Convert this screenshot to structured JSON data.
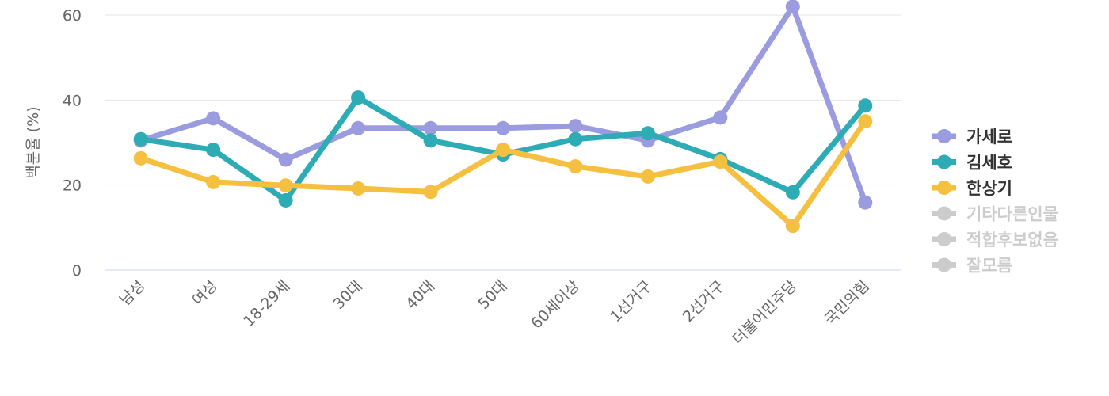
{
  "chart_data": {
    "type": "line",
    "y_label": "백분율 (%)",
    "categories": [
      "남성",
      "여성",
      "18-29세",
      "30대",
      "40대",
      "50대",
      "60세이상",
      "1선거구",
      "2선거구",
      "더불어민주당",
      "국민의힘"
    ],
    "ylim": [
      0,
      60
    ],
    "yticks": [
      0,
      20,
      40,
      60
    ],
    "grid": true,
    "series": [
      {
        "name": "가세로",
        "color": "#9b9be0",
        "visible": true,
        "values": [
          30.5,
          35.7,
          26,
          33.4,
          33.4,
          33.4,
          33.9,
          30.5,
          35.9,
          62,
          15.9
        ]
      },
      {
        "name": "김세호",
        "color": "#2eacb6",
        "visible": true,
        "values": [
          30.8,
          28.3,
          16.4,
          40.6,
          30.5,
          27.2,
          30.8,
          32.2,
          26.1,
          18.3,
          38.7
        ]
      },
      {
        "name": "한상기",
        "color": "#f5c040",
        "visible": true,
        "values": [
          26.3,
          20.7,
          19.9,
          19.2,
          18.4,
          28.3,
          24.4,
          22,
          25.5,
          10.4,
          35
        ]
      },
      {
        "name": "기타다른인물",
        "color": "#cccccc",
        "visible": false,
        "values": [
          null,
          null,
          null,
          null,
          null,
          null,
          null,
          null,
          null,
          null,
          null
        ]
      },
      {
        "name": "적합후보없음",
        "color": "#cccccc",
        "visible": false,
        "values": [
          null,
          null,
          null,
          null,
          null,
          null,
          null,
          null,
          null,
          null,
          null
        ]
      },
      {
        "name": "잘모름",
        "color": "#cccccc",
        "visible": false,
        "values": [
          null,
          null,
          null,
          null,
          null,
          null,
          null,
          null,
          null,
          null,
          null
        ]
      }
    ]
  }
}
